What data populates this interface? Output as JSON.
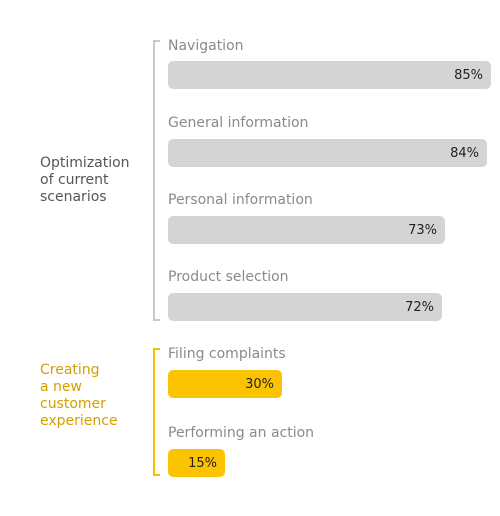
{
  "chart_data": {
    "type": "bar",
    "orientation": "horizontal",
    "unit": "%",
    "groups": [
      {
        "label": "Optimization\nof current\nscenarios",
        "color": "#d4d4d4",
        "bars": [
          {
            "label": "Navigation",
            "value": 85,
            "value_label": "85%"
          },
          {
            "label": "General information",
            "value": 84,
            "value_label": "84%"
          },
          {
            "label": "Personal information",
            "value": 73,
            "value_label": "73%"
          },
          {
            "label": "Product selection",
            "value": 72,
            "value_label": "72%"
          }
        ]
      },
      {
        "label": "Creating\na new\ncustomer\nexperience",
        "color": "#fcc400",
        "label_color": "#d4a000",
        "bars": [
          {
            "label": "Filing complaints",
            "value": 30,
            "value_label": "30%"
          },
          {
            "label": "Performing an action",
            "value": 15,
            "value_label": "15%"
          }
        ]
      }
    ]
  }
}
